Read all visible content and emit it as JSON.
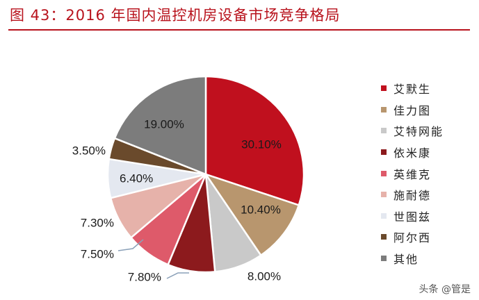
{
  "title": "图 43：2016 年国内温控机房设备市场竞争格局",
  "watermark": "头条 @管是",
  "chart_data": {
    "type": "pie",
    "title": "图 43：2016 年国内温控机房设备市场竞争格局",
    "legend_position": "right",
    "slices": [
      {
        "name": "艾默生",
        "value": 30.1,
        "label": "30.10%",
        "color": "#c0101e"
      },
      {
        "name": "佳力图",
        "value": 10.4,
        "label": "10.40%",
        "color": "#b8966e"
      },
      {
        "name": "艾特网能",
        "value": 8.0,
        "label": "8.00%",
        "color": "#c9c9c9"
      },
      {
        "name": "依米康",
        "value": 7.8,
        "label": "7.80%",
        "color": "#8c1a1d"
      },
      {
        "name": "英维克",
        "value": 7.5,
        "label": "7.50%",
        "color": "#de5a6a"
      },
      {
        "name": "施耐德",
        "value": 7.3,
        "label": "7.30%",
        "color": "#e6b2aa"
      },
      {
        "name": "世图兹",
        "value": 6.4,
        "label": "6.40%",
        "color": "#e4e8f0"
      },
      {
        "name": "阿尔西",
        "value": 3.5,
        "label": "3.50%",
        "color": "#6a4a2c"
      },
      {
        "name": "其他",
        "value": 19.0,
        "label": "19.00%",
        "color": "#7c7c7c"
      }
    ]
  }
}
